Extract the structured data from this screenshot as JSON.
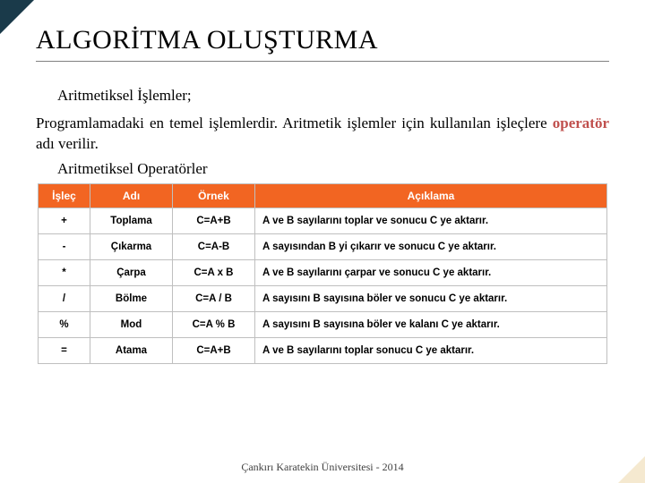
{
  "title": "ALGORİTMA OLUŞTURMA",
  "subhead": "Aritmetiksel İşlemler;",
  "para_before": "Programlamadaki en temel işlemlerdir. Aritmetik işlemler için kullanılan işleçlere ",
  "para_hl": "operatör",
  "para_after": " adı verilir.",
  "subhead2": "Aritmetiksel Operatörler",
  "table": {
    "header_bg": "#f26522",
    "border_color": "#bfbfbf",
    "columns": [
      "İşleç",
      "Adı",
      "Örnek",
      "Açıklama"
    ],
    "rows": [
      [
        "+",
        "Toplama",
        "C=A+B",
        "A ve B sayılarını toplar ve sonucu C ye aktarır."
      ],
      [
        "-",
        "Çıkarma",
        "C=A-B",
        "A sayısından B yi çıkarır ve sonucu C ye aktarır."
      ],
      [
        "*",
        "Çarpa",
        "C=A x B",
        "A ve B sayılarını çarpar ve sonucu C ye aktarır."
      ],
      [
        "/",
        "Bölme",
        "C=A / B",
        "A sayısını B sayısına böler ve sonucu C ye aktarır."
      ],
      [
        "%",
        "Mod",
        "C=A % B",
        "A sayısını B sayısına böler ve kalanı C ye aktarır."
      ],
      [
        "=",
        "Atama",
        "C=A+B",
        "A ve B sayılarını toplar sonucu C ye aktarır."
      ]
    ]
  },
  "footer": "Çankırı Karatekin Üniversitesi - 2014"
}
